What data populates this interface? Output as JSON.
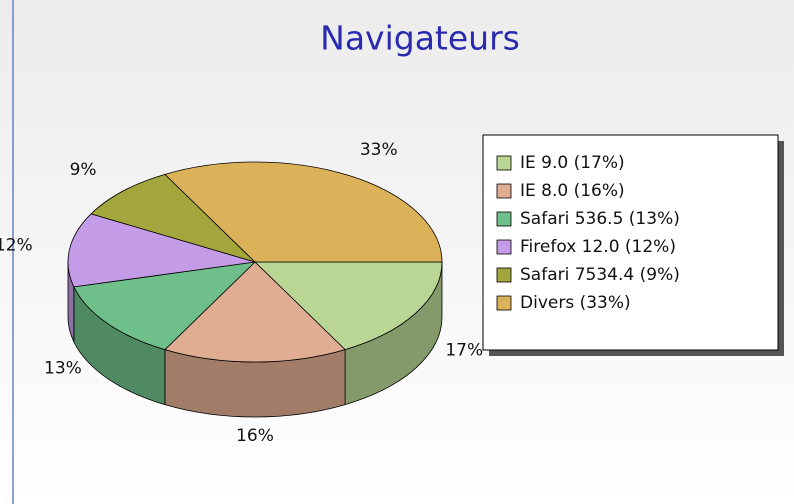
{
  "chart_data": {
    "type": "pie3d",
    "title": "Navigateurs",
    "categories": [
      "IE 9.0 (17%)",
      "IE 8.0 (16%)",
      "Safari 536.5 (13%)",
      "Firefox 12.0 (12%)",
      "Safari 7534.4 (9%)",
      "Divers (33%)"
    ],
    "values": [
      17,
      16,
      13,
      12,
      9,
      33
    ],
    "value_labels": [
      "17%",
      "16%",
      "13%",
      "12%",
      "9%",
      "33%"
    ],
    "colors": [
      "#b9d694",
      "#dfae92",
      "#6fbf8a",
      "#c49be6",
      "#a3a63c",
      "#dbb15a"
    ],
    "legend": "right"
  }
}
